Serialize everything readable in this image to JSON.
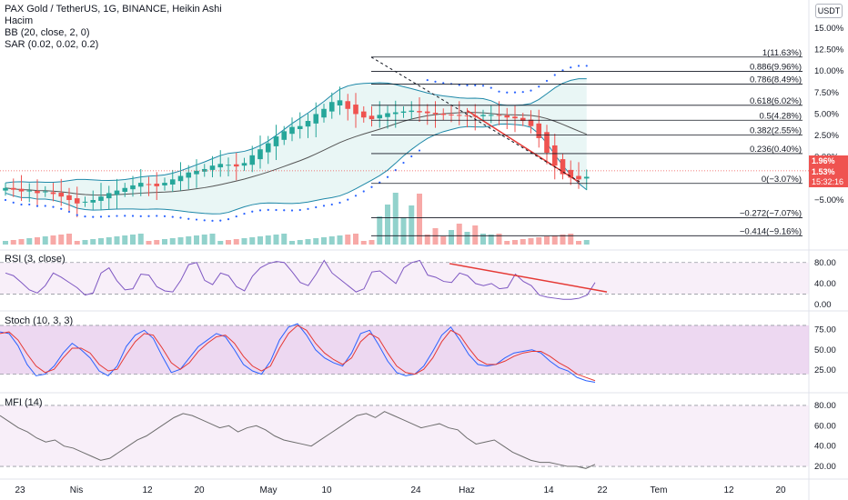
{
  "legend": {
    "title": "PAX Gold / TetherUS, 1G, BINANCE, Heikin Ashi",
    "volume": "Hacim",
    "bb": "BB (20, close, 2, 0)",
    "sar": "SAR (0.02, 0.02, 0.2)"
  },
  "currency": "USDT",
  "price_tags": {
    "top": "1.96%",
    "mid": "1.53%",
    "timer": "15:32:16"
  },
  "colors": {
    "up": "#26a69a",
    "down": "#ef5350",
    "rsi_band": "#f3e5f5",
    "stoch_band": "#e1bee7",
    "bb_fill": "#e0f2f1",
    "bb_line": "#2196f3",
    "trend_line": "#e53935",
    "k_line": "#2962ff",
    "d_line": "#e53935",
    "osc_line": "#7e57c2"
  },
  "chart_data": [
    {
      "type": "candlestick",
      "name": "PAX Gold / TetherUS, 1G, BINANCE, Heikin Ashi",
      "y_ticks": [
        "15.00%",
        "12.50%",
        "10.00%",
        "7.50%",
        "5.00%",
        "2.50%",
        "0.00%",
        "-2.50%",
        "-5.00%"
      ],
      "x_ticks": [
        "23",
        "Nis",
        "12",
        "20",
        "May",
        "10",
        "24",
        "Haz",
        "14",
        "22",
        "Tem",
        "12",
        "20"
      ],
      "percent_scale": true,
      "fib_levels": [
        {
          "ratio": "1",
          "pct": "11.63%",
          "label": "1(11.63%)",
          "y": 11.63
        },
        {
          "ratio": "0.886",
          "pct": "9.96%",
          "label": "0.886(9.96%)",
          "y": 9.96
        },
        {
          "ratio": "0.786",
          "pct": "8.49%",
          "label": "0.786(8.49%)",
          "y": 8.49
        },
        {
          "ratio": "0.618",
          "pct": "6.02%",
          "label": "0.618(6.02%)",
          "y": 6.02
        },
        {
          "ratio": "0.5",
          "pct": "4.28%",
          "label": "0.5(4.28%)",
          "y": 4.28
        },
        {
          "ratio": "0.382",
          "pct": "2.55%",
          "label": "0.382(2.55%)",
          "y": 2.55
        },
        {
          "ratio": "0.236",
          "pct": "0.40%",
          "label": "0.236(0.40%)",
          "y": 0.4
        },
        {
          "ratio": "0",
          "pct": "-3.07%",
          "label": "0(−3.07%)",
          "y": -3.07
        },
        {
          "ratio": "-0.272",
          "pct": "-7.07%",
          "label": "−0.272(−7.07%)",
          "y": -7.07
        },
        {
          "ratio": "-0.414",
          "pct": "-9.16%",
          "label": "−0.414(−9.16%)",
          "y": -9.16
        }
      ],
      "candles_pct_close": [
        -3.6,
        -3.8,
        -4.0,
        -3.9,
        -4.2,
        -4.0,
        -4.3,
        -4.6,
        -5.0,
        -5.4,
        -5.2,
        -5.0,
        -4.6,
        -4.2,
        -3.9,
        -3.6,
        -3.3,
        -3.0,
        -3.2,
        -3.4,
        -3.0,
        -2.6,
        -2.2,
        -1.8,
        -1.6,
        -1.4,
        -1.0,
        -0.8,
        -0.9,
        -1.1,
        -0.7,
        0.2,
        0.9,
        1.6,
        2.4,
        3.0,
        3.5,
        3.6,
        4.2,
        5.0,
        5.6,
        6.4,
        6.6,
        5.6,
        5.0,
        4.6,
        4.4,
        4.9,
        5.1,
        5.2,
        5.3,
        5.4,
        5.2,
        5.1,
        5.0,
        4.9,
        4.9,
        4.8,
        4.8,
        4.7,
        4.9,
        4.9,
        4.8,
        4.6,
        4.5,
        4.2,
        3.6,
        2.2,
        0.5,
        -1.0,
        -2.0,
        -2.4,
        -2.6,
        -2.3
      ],
      "bb": {
        "period": 20,
        "source": "close",
        "mult": 2,
        "offset": 0
      },
      "sar": {
        "start": 0.02,
        "increment": 0.02,
        "max": 0.2
      },
      "trend_line_from_pct": 5.4,
      "trend_line_to_pct": -2.9
    },
    {
      "type": "line",
      "name": "RSI (3, close)",
      "y_ticks": [
        "80.00",
        "40.00",
        "0.00"
      ],
      "band": [
        20,
        80
      ],
      "values": [
        60,
        55,
        42,
        28,
        22,
        36,
        60,
        52,
        42,
        32,
        18,
        22,
        60,
        70,
        45,
        28,
        30,
        58,
        56,
        34,
        26,
        24,
        46,
        76,
        80,
        46,
        38,
        60,
        55,
        34,
        26,
        54,
        70,
        78,
        82,
        80,
        62,
        42,
        36,
        58,
        84,
        60,
        48,
        36,
        24,
        30,
        62,
        64,
        52,
        40,
        70,
        80,
        84,
        56,
        52,
        44,
        42,
        60,
        55,
        40,
        36,
        40,
        30,
        32,
        58,
        44,
        36,
        18,
        14,
        12,
        10,
        10,
        12,
        18,
        42
      ],
      "trend_line": [
        78,
        24
      ]
    },
    {
      "type": "line",
      "name": "Stoch (10, 3, 3)",
      "y_ticks": [
        "75.00",
        "50.00",
        "25.00"
      ],
      "band": [
        20,
        80
      ],
      "series": [
        {
          "name": "K",
          "values": [
            72,
            70,
            55,
            32,
            18,
            20,
            30,
            46,
            58,
            50,
            40,
            24,
            18,
            30,
            54,
            68,
            74,
            64,
            42,
            22,
            26,
            40,
            54,
            62,
            70,
            66,
            50,
            32,
            24,
            20,
            36,
            62,
            78,
            82,
            68,
            50,
            40,
            34,
            30,
            46,
            70,
            74,
            56,
            36,
            22,
            18,
            20,
            30,
            48,
            68,
            78,
            62,
            44,
            32,
            30,
            32,
            40,
            46,
            48,
            50,
            46,
            36,
            28,
            24,
            16,
            12,
            10
          ]
        },
        {
          "name": "D",
          "values": [
            70,
            72,
            62,
            45,
            30,
            22,
            26,
            40,
            52,
            52,
            46,
            32,
            24,
            26,
            44,
            60,
            70,
            68,
            52,
            34,
            26,
            34,
            48,
            58,
            66,
            68,
            58,
            42,
            30,
            24,
            30,
            52,
            70,
            80,
            74,
            58,
            46,
            38,
            32,
            40,
            60,
            70,
            64,
            46,
            30,
            22,
            20,
            26,
            40,
            60,
            74,
            68,
            52,
            38,
            32,
            32,
            36,
            42,
            46,
            48,
            48,
            42,
            34,
            28,
            20,
            16,
            12
          ]
        }
      ]
    },
    {
      "type": "line",
      "name": "MFI (14)",
      "y_ticks": [
        "80.00",
        "60.00",
        "40.00",
        "20.00"
      ],
      "band": [
        20,
        80
      ],
      "values": [
        70,
        64,
        58,
        54,
        48,
        44,
        46,
        40,
        38,
        34,
        30,
        26,
        28,
        34,
        40,
        46,
        50,
        56,
        62,
        68,
        72,
        70,
        66,
        62,
        58,
        60,
        54,
        58,
        60,
        56,
        50,
        46,
        44,
        42,
        40,
        46,
        52,
        58,
        64,
        70,
        72,
        68,
        74,
        70,
        66,
        62,
        58,
        60,
        62,
        58,
        56,
        48,
        42,
        44,
        46,
        40,
        34,
        30,
        26,
        24,
        24,
        22,
        20,
        20,
        18,
        22
      ]
    }
  ]
}
